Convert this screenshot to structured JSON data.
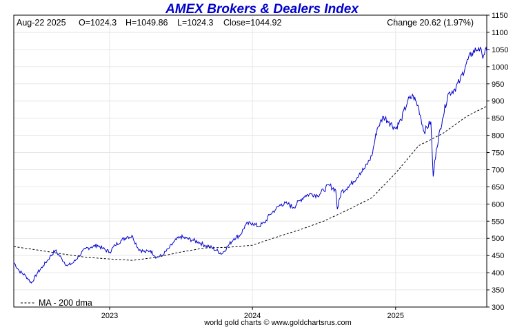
{
  "chart_data": {
    "type": "line",
    "title": "AMEX Brokers & Dealers Index",
    "info_line": {
      "date": "Aug-22  2025",
      "open": "O=1024.3",
      "high": "H=1049.86",
      "low": "L=1024.3",
      "close": "Close=1044.92",
      "change": "Change 20.62 (1.97%)"
    },
    "credit": "world gold charts © www.goldchartsrus.com",
    "ylim": [
      300,
      1150
    ],
    "y_ticks": [
      300,
      350,
      400,
      450,
      500,
      550,
      600,
      650,
      700,
      750,
      800,
      850,
      900,
      950,
      1000,
      1050,
      1100,
      1150
    ],
    "y_tick_labels": [
      "300",
      "350",
      "400",
      "450",
      "500",
      "550",
      "600",
      "650",
      "700",
      "750",
      "800",
      "850",
      "900",
      "950",
      "1000",
      "1050",
      "1100",
      "1150"
    ],
    "xlim": [
      "2022-05-01",
      "2025-08-22"
    ],
    "x_ticks": [
      "2023-01-01",
      "2024-01-01",
      "2025-01-01"
    ],
    "x_tick_labels": [
      "2023",
      "2024",
      "2025"
    ],
    "grid": true,
    "legend_placement": "bottom-left",
    "series": [
      {
        "name": "",
        "style": "solid",
        "color": "#0000cc",
        "points": [
          [
            "2022-05-01",
            430
          ],
          [
            "2022-05-15",
            405
          ],
          [
            "2022-06-01",
            390
          ],
          [
            "2022-06-15",
            370
          ],
          [
            "2022-07-01",
            400
          ],
          [
            "2022-07-15",
            420
          ],
          [
            "2022-08-01",
            445
          ],
          [
            "2022-08-15",
            465
          ],
          [
            "2022-09-01",
            440
          ],
          [
            "2022-09-15",
            420
          ],
          [
            "2022-10-01",
            430
          ],
          [
            "2022-10-15",
            450
          ],
          [
            "2022-11-01",
            470
          ],
          [
            "2022-11-15",
            475
          ],
          [
            "2022-12-01",
            480
          ],
          [
            "2022-12-15",
            470
          ],
          [
            "2023-01-01",
            460
          ],
          [
            "2023-01-15",
            480
          ],
          [
            "2023-02-01",
            495
          ],
          [
            "2023-02-15",
            505
          ],
          [
            "2023-03-01",
            505
          ],
          [
            "2023-03-15",
            470
          ],
          [
            "2023-04-01",
            460
          ],
          [
            "2023-04-15",
            465
          ],
          [
            "2023-05-01",
            445
          ],
          [
            "2023-05-15",
            450
          ],
          [
            "2023-06-01",
            470
          ],
          [
            "2023-06-15",
            490
          ],
          [
            "2023-07-01",
            505
          ],
          [
            "2023-07-15",
            500
          ],
          [
            "2023-08-01",
            495
          ],
          [
            "2023-08-15",
            490
          ],
          [
            "2023-09-01",
            480
          ],
          [
            "2023-09-15",
            475
          ],
          [
            "2023-10-01",
            465
          ],
          [
            "2023-10-15",
            455
          ],
          [
            "2023-11-01",
            480
          ],
          [
            "2023-11-15",
            500
          ],
          [
            "2023-12-01",
            510
          ],
          [
            "2023-12-15",
            540
          ],
          [
            "2024-01-01",
            545
          ],
          [
            "2024-01-15",
            535
          ],
          [
            "2024-02-01",
            545
          ],
          [
            "2024-02-15",
            570
          ],
          [
            "2024-03-01",
            585
          ],
          [
            "2024-03-15",
            600
          ],
          [
            "2024-04-01",
            600
          ],
          [
            "2024-04-15",
            590
          ],
          [
            "2024-05-01",
            610
          ],
          [
            "2024-05-15",
            625
          ],
          [
            "2024-06-01",
            630
          ],
          [
            "2024-06-15",
            625
          ],
          [
            "2024-07-01",
            640
          ],
          [
            "2024-07-15",
            655
          ],
          [
            "2024-08-01",
            640
          ],
          [
            "2024-08-05",
            585
          ],
          [
            "2024-08-15",
            635
          ],
          [
            "2024-09-01",
            650
          ],
          [
            "2024-09-15",
            665
          ],
          [
            "2024-10-01",
            690
          ],
          [
            "2024-10-15",
            705
          ],
          [
            "2024-11-01",
            740
          ],
          [
            "2024-11-15",
            820
          ],
          [
            "2024-12-01",
            855
          ],
          [
            "2024-12-15",
            840
          ],
          [
            "2025-01-01",
            820
          ],
          [
            "2025-01-15",
            845
          ],
          [
            "2025-02-01",
            900
          ],
          [
            "2025-02-15",
            915
          ],
          [
            "2025-03-01",
            880
          ],
          [
            "2025-03-15",
            810
          ],
          [
            "2025-04-01",
            840
          ],
          [
            "2025-04-07",
            680
          ],
          [
            "2025-04-15",
            760
          ],
          [
            "2025-05-01",
            850
          ],
          [
            "2025-05-15",
            920
          ],
          [
            "2025-06-01",
            935
          ],
          [
            "2025-06-15",
            960
          ],
          [
            "2025-07-01",
            1010
          ],
          [
            "2025-07-15",
            1040
          ],
          [
            "2025-08-01",
            1055
          ],
          [
            "2025-08-10",
            1035
          ],
          [
            "2025-08-22",
            1044.92
          ]
        ]
      },
      {
        "name": "MA - 200 dma",
        "style": "dashed",
        "color": "#000000",
        "points": [
          [
            "2022-05-01",
            476
          ],
          [
            "2022-07-01",
            466
          ],
          [
            "2022-09-01",
            455
          ],
          [
            "2022-11-01",
            445
          ],
          [
            "2023-01-01",
            440
          ],
          [
            "2023-03-01",
            436
          ],
          [
            "2023-05-01",
            445
          ],
          [
            "2023-07-01",
            460
          ],
          [
            "2023-09-01",
            472
          ],
          [
            "2023-11-01",
            474
          ],
          [
            "2024-01-01",
            480
          ],
          [
            "2024-03-01",
            503
          ],
          [
            "2024-05-01",
            525
          ],
          [
            "2024-07-01",
            550
          ],
          [
            "2024-09-01",
            583
          ],
          [
            "2024-11-01",
            618
          ],
          [
            "2025-01-01",
            690
          ],
          [
            "2025-03-01",
            770
          ],
          [
            "2025-05-01",
            805
          ],
          [
            "2025-07-01",
            855
          ],
          [
            "2025-08-22",
            885
          ]
        ]
      }
    ]
  }
}
